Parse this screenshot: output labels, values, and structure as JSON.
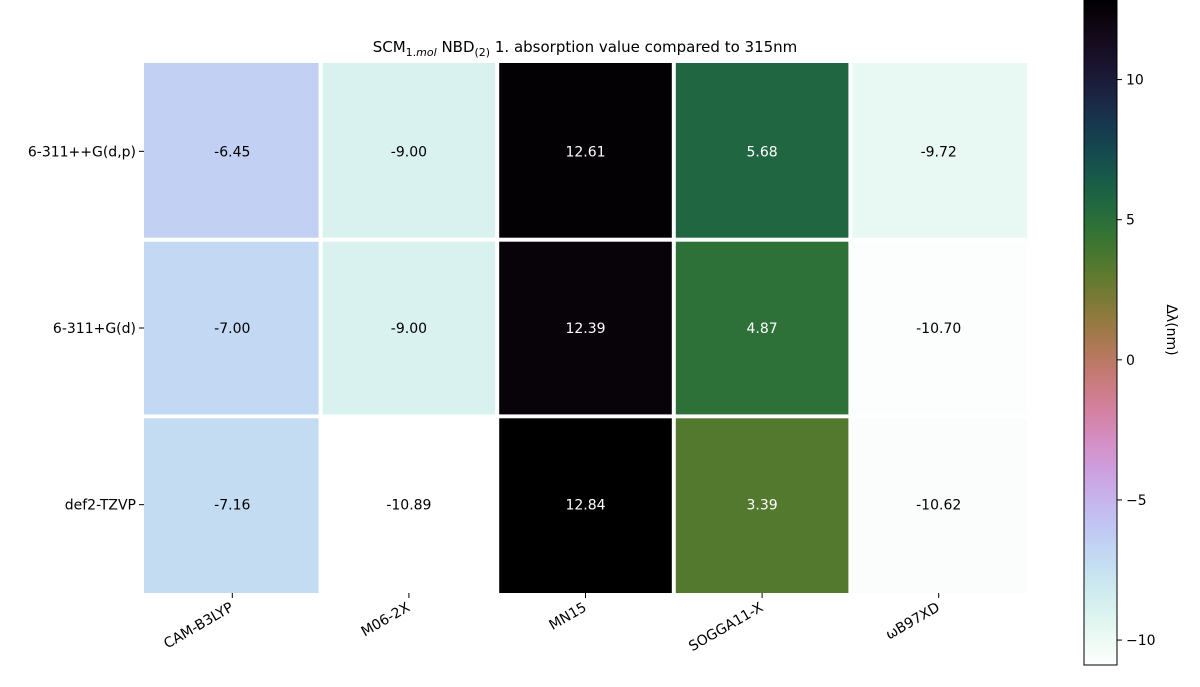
{
  "chart_data": {
    "type": "heatmap",
    "title_parts": {
      "a": "SCM",
      "a_sub": "1.",
      "a_sub_italic": "mol",
      "b": " NBD",
      "b_sub": "(2)",
      "c": " 1. absorption value compared to 315nm"
    },
    "rows": [
      "6-311++G(d,p)",
      "6-311+G(d)",
      "def2-TZVP"
    ],
    "columns": [
      "CAM-B3LYP",
      "M06-2X",
      "MN15",
      "SOGGA11-X",
      "ωB97XD"
    ],
    "values": [
      [
        -6.45,
        -9.0,
        12.61,
        5.68,
        -9.72
      ],
      [
        -7.0,
        -9.0,
        12.39,
        4.87,
        -10.7
      ],
      [
        -7.16,
        -10.89,
        12.84,
        3.39,
        -10.62
      ]
    ],
    "value_labels": [
      [
        "-6.45",
        "-9.00",
        "12.61",
        "5.68",
        "-9.72"
      ],
      [
        "-7.00",
        "-9.00",
        "12.39",
        "4.87",
        "-10.70"
      ],
      [
        "-7.16",
        "-10.89",
        "12.84",
        "3.39",
        "-10.62"
      ]
    ],
    "colorbar": {
      "label": "Δλ(nm)",
      "colormap": "cubehelix_r",
      "vmin": -10.89,
      "vmax": 12.84,
      "ticks": [
        10,
        5,
        0,
        -5,
        -10
      ],
      "tick_labels": [
        "10",
        "5",
        "0",
        "−5",
        "−10"
      ]
    },
    "grid": false
  }
}
